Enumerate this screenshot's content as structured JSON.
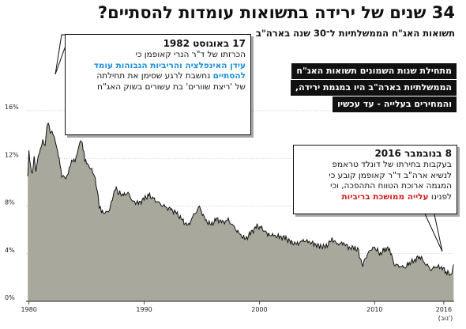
{
  "title": "34 שנים של ירידה בתשואות עומדות להסתיים?",
  "subtitle": "תשואות האג\"ח הממשלתיות ל־30 שנה בארה\"ב",
  "black_boxes": [
    "מתחילת שנות השמונים תשואות האג\"ח",
    "הממשלתיות בארה\"ב היו במגמת ירידה,",
    "והמחירים בעלייה - עד עכשיו"
  ],
  "callout_1982": {
    "head": "17 באוגוסט 1982",
    "line1": "הכרזתו של ד\"ר הנרי קאופמן כי",
    "hl1": "עידן האינפלציה והריביות הגבוהות עומד",
    "hl2": "להסתיים",
    "line3": " נחשבת לרגע שסימן את תחילתה",
    "line4": "של 'ריצת שוורים' בת עשורים בשוק האג\"ח"
  },
  "callout_2016": {
    "head": "8 בנובמבר 2016",
    "line1": "בעקבות בחירתו של דונלד טראמפ",
    "line2": "לנשיא ארה\"ב ד\"ר קאופמן קובע כי",
    "line3": "המגמה ארוכת הטווח התהפכה, וכי",
    "line4_pre": "לפנינו ",
    "line4_hl": "עלייה ממושכת בריביות"
  },
  "chart_data": {
    "type": "area",
    "x_unit": "year",
    "y_unit": "%",
    "ylim": [
      0,
      16
    ],
    "xlim": [
      1979.75,
      2016.9
    ],
    "y_ticks": [
      "0%",
      "4%",
      "8%",
      "12%",
      "16%"
    ],
    "y_tick_values": [
      0,
      4,
      8,
      12,
      16
    ],
    "x_ticks": [
      "1980",
      "1990",
      "2000",
      "2010",
      "2016"
    ],
    "x_tick_values": [
      1980,
      1990,
      2000,
      2010,
      2016
    ],
    "x_tick_note": "(נוב')",
    "grid": true,
    "fill_color": "#a8a89c",
    "line_color": "#111111",
    "series": [
      {
        "x": [
          1979.9,
          1980.0,
          1980.15,
          1980.3,
          1980.45,
          1980.6,
          1980.8,
          1981.0,
          1981.2,
          1981.4,
          1981.55,
          1981.7,
          1981.85,
          1982.0,
          1982.2,
          1982.4,
          1982.55,
          1982.7,
          1982.85,
          1983.0,
          1983.2,
          1983.4,
          1983.6,
          1983.8,
          1984.0,
          1984.2,
          1984.4,
          1984.55,
          1984.7,
          1984.85,
          1985.0,
          1985.3,
          1985.6,
          1985.9,
          1986.1,
          1986.3,
          1986.6,
          1987.0,
          1987.3,
          1987.5,
          1987.8,
          1988.2,
          1988.6,
          1989.0,
          1989.5,
          1990.0,
          1990.4,
          1990.8,
          1991.3,
          1991.8,
          1992.3,
          1992.8,
          1993.3,
          1993.8,
          1994.3,
          1994.8,
          1995.3,
          1995.8,
          1996.3,
          1996.8,
          1997.3,
          1997.8,
          1998.3,
          1998.8,
          1999.3,
          1999.8,
          2000.2,
          2000.8,
          2001.3,
          2001.8,
          2002.3,
          2002.8,
          2003.3,
          2003.8,
          2004.3,
          2004.8,
          2005.3,
          2005.8,
          2006.3,
          2006.8,
          2007.3,
          2007.8,
          2008.3,
          2008.6,
          2008.9,
          2009.2,
          2009.6,
          2010.0,
          2010.5,
          2010.9,
          2011.3,
          2011.7,
          2012.2,
          2012.6,
          2013.0,
          2013.5,
          2013.9,
          2014.4,
          2014.9,
          2015.3,
          2015.8,
          2016.2,
          2016.5,
          2016.7,
          2016.85
        ],
        "y": [
          10.5,
          12.6,
          11.3,
          10.8,
          12.3,
          11.0,
          12.2,
          12.8,
          13.6,
          13.2,
          14.8,
          15.1,
          14.2,
          14.3,
          13.9,
          13.1,
          12.4,
          11.6,
          10.5,
          10.6,
          10.4,
          10.9,
          11.6,
          11.9,
          11.8,
          12.5,
          13.4,
          13.6,
          12.9,
          11.9,
          11.6,
          11.2,
          10.8,
          9.6,
          8.0,
          7.5,
          7.4,
          7.7,
          8.9,
          9.5,
          9.1,
          8.9,
          9.1,
          8.4,
          8.2,
          8.6,
          8.9,
          8.6,
          8.2,
          7.9,
          7.7,
          7.4,
          6.8,
          6.3,
          7.2,
          7.9,
          6.8,
          6.4,
          6.9,
          6.6,
          6.8,
          6.2,
          5.6,
          5.2,
          5.8,
          6.3,
          6.1,
          5.6,
          5.5,
          5.4,
          5.3,
          4.9,
          4.8,
          5.1,
          5.0,
          4.8,
          4.6,
          4.6,
          5.2,
          4.8,
          4.9,
          4.5,
          4.5,
          4.2,
          3.0,
          3.6,
          4.3,
          4.5,
          4.0,
          4.4,
          4.4,
          3.1,
          3.0,
          2.8,
          3.2,
          3.5,
          3.8,
          3.2,
          2.7,
          2.9,
          2.9,
          2.5,
          2.3,
          2.5,
          3.1
        ]
      }
    ]
  }
}
